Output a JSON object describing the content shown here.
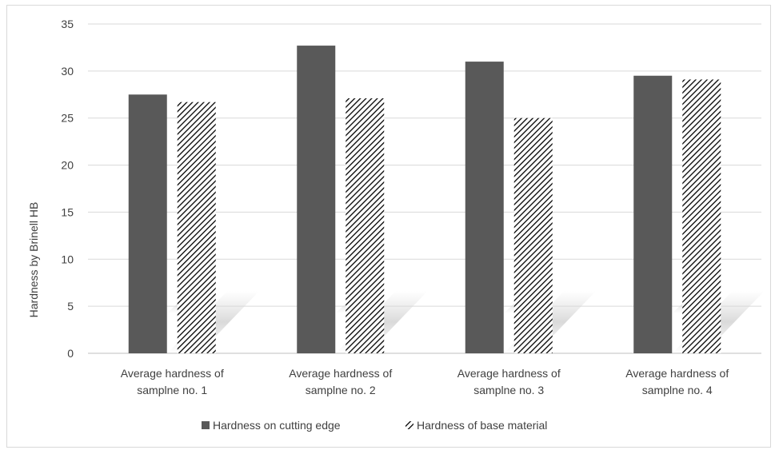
{
  "chart_data": {
    "type": "bar",
    "categories": [
      [
        "Average hardness of",
        "samplne no. 1"
      ],
      [
        "Average hardness of",
        "samplne no. 2"
      ],
      [
        "Average hardness of",
        "samplne no. 3"
      ],
      [
        "Average hardness of",
        "samplne no. 4"
      ]
    ],
    "series": [
      {
        "name": "Hardness on cutting edge",
        "values": [
          27.5,
          32.7,
          31.0,
          29.5
        ],
        "fill": "solid",
        "color": "#595959"
      },
      {
        "name": "Hardness of base material",
        "values": [
          26.7,
          27.1,
          25.0,
          29.1
        ],
        "fill": "hatched",
        "color": "#000000"
      }
    ],
    "ylabel": "Hardness by Brinell HB",
    "ylim": [
      0,
      35
    ],
    "yticks": [
      0,
      5,
      10,
      15,
      20,
      25,
      30,
      35
    ],
    "grid": true,
    "legend": "bottom"
  }
}
